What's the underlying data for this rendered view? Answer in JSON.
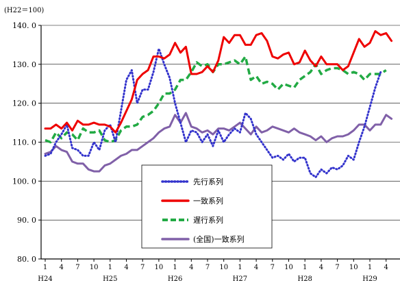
{
  "chart_data": {
    "type": "line",
    "unit_label": "(H22＝100)",
    "ylim": [
      80,
      140
    ],
    "yticks": [
      80,
      90,
      100,
      110,
      120,
      130,
      140
    ],
    "ytick_labels": [
      "80. 0",
      "90. 0",
      "100. 0",
      "110. 0",
      "120. 0",
      "130. 0",
      "140. 0"
    ],
    "grid": "horizontal",
    "month_ticks": [
      "1",
      "4",
      "7",
      "10",
      "1",
      "4",
      "7",
      "10",
      "1",
      "4",
      "7",
      "10",
      "1",
      "4",
      "7",
      "10",
      "1",
      "4",
      "7",
      "10",
      "1",
      "4"
    ],
    "year_labels": [
      "H24",
      "H25",
      "H26",
      "H27",
      "H28",
      "H29"
    ],
    "legend_position": "center",
    "series": [
      {
        "name": "先行系列",
        "color": "#3333cc",
        "style": "dotted",
        "values": [
          106.5,
          107.0,
          110.0,
          112.0,
          114.5,
          108.5,
          108.0,
          106.5,
          106.5,
          110.0,
          108.0,
          113.0,
          114.5,
          110.0,
          118.0,
          126.0,
          128.5,
          120.0,
          123.5,
          123.5,
          128.0,
          134.0,
          130.0,
          126.5,
          120.0,
          115.0,
          110.0,
          113.0,
          112.5,
          110.0,
          112.0,
          109.0,
          113.0,
          110.0,
          112.0,
          113.5,
          112.5,
          117.5,
          116.0,
          112.0,
          110.0,
          108.0,
          106.0,
          106.5,
          105.5,
          107.0,
          105.0,
          106.0,
          106.0,
          102.0,
          101.0,
          103.0,
          102.0,
          103.5,
          103.0,
          104.0,
          106.5,
          105.5,
          110.0,
          114.0,
          119.0,
          124.0,
          128.0
        ]
      },
      {
        "name": "一致系列",
        "color": "#ee0000",
        "style": "solid",
        "values": [
          113.5,
          113.5,
          114.5,
          113.5,
          115.0,
          113.0,
          115.5,
          114.5,
          114.5,
          115.0,
          114.5,
          114.5,
          114.0,
          112.5,
          115.0,
          118.0,
          121.0,
          126.0,
          127.5,
          128.5,
          132.0,
          132.0,
          131.5,
          132.5,
          135.5,
          133.0,
          134.5,
          127.5,
          127.5,
          128.0,
          129.5,
          128.0,
          131.0,
          137.0,
          135.5,
          137.5,
          137.5,
          135.0,
          135.0,
          137.5,
          138.0,
          136.0,
          132.0,
          131.5,
          132.5,
          133.0,
          130.0,
          130.5,
          133.5,
          131.0,
          129.5,
          132.0,
          130.0,
          130.0,
          130.0,
          128.5,
          129.5,
          133.0,
          136.5,
          134.5,
          135.5,
          138.5,
          137.5,
          138.0,
          136.0
        ]
      },
      {
        "name": "遅行系列",
        "color": "#22aa44",
        "style": "dashed",
        "values": [
          110.5,
          110.0,
          112.5,
          111.0,
          112.5,
          112.0,
          110.5,
          113.5,
          112.5,
          112.5,
          113.0,
          110.5,
          110.0,
          110.5,
          113.0,
          114.0,
          114.0,
          114.5,
          116.5,
          117.0,
          118.0,
          120.0,
          122.5,
          122.5,
          123.5,
          126.0,
          126.0,
          128.0,
          130.5,
          129.5,
          130.0,
          128.0,
          130.0,
          130.0,
          130.5,
          131.0,
          130.0,
          132.0,
          126.0,
          127.0,
          125.0,
          125.5,
          125.0,
          123.5,
          125.0,
          124.5,
          124.0,
          126.0,
          127.0,
          128.0,
          130.0,
          127.5,
          128.5,
          129.0,
          129.0,
          128.5,
          127.5,
          128.0,
          127.5,
          126.0,
          127.5,
          127.5,
          127.5,
          128.5
        ]
      },
      {
        "name": "(全国)一致系列",
        "color": "#8060a8",
        "style": "solid",
        "values": [
          107.0,
          107.5,
          109.0,
          108.0,
          107.5,
          105.0,
          104.5,
          104.5,
          103.0,
          102.5,
          102.5,
          104.0,
          104.5,
          105.5,
          106.5,
          107.0,
          108.0,
          108.0,
          109.0,
          110.0,
          111.0,
          112.5,
          113.5,
          114.0,
          117.0,
          115.0,
          117.5,
          114.0,
          113.5,
          112.5,
          113.0,
          112.0,
          113.5,
          113.5,
          113.0,
          114.0,
          115.0,
          113.5,
          112.0,
          114.0,
          112.5,
          113.0,
          114.0,
          113.5,
          113.0,
          112.5,
          113.5,
          112.5,
          112.0,
          111.5,
          110.5,
          111.5,
          110.0,
          111.0,
          111.5,
          111.5,
          112.0,
          113.0,
          114.5,
          114.5,
          113.0,
          114.5,
          114.5,
          117.0,
          116.0
        ]
      }
    ]
  }
}
